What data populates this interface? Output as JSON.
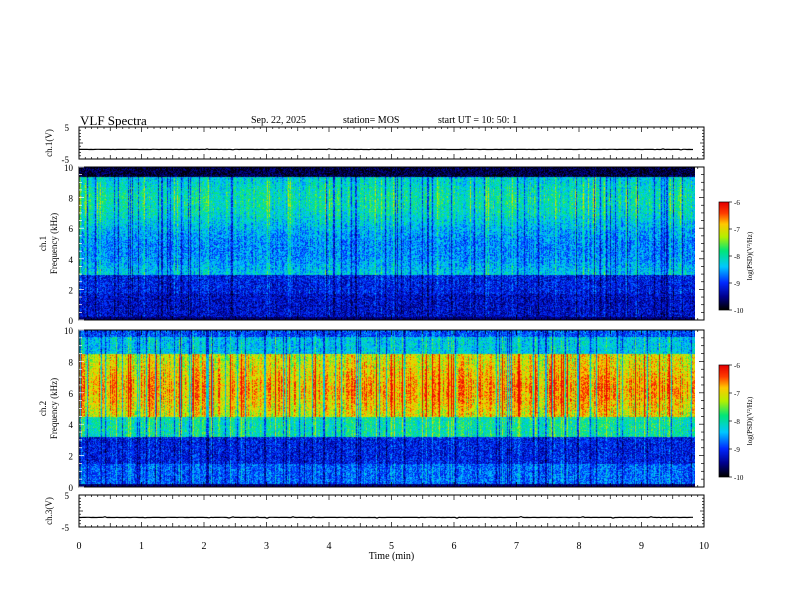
{
  "header": {
    "title": "VLF Spectra",
    "date": "Sep. 22, 2025",
    "station": "station= MOS",
    "start": "start  UT  =   10: 50: 1"
  },
  "chart_data": [
    {
      "type": "line",
      "name": "ch1-waveform",
      "ylabel": "ch.1(V)",
      "ylim": [
        -5,
        5
      ],
      "yticks": [
        "5",
        "-5"
      ],
      "baseline": -2
    },
    {
      "type": "heatmap",
      "name": "ch1-spectrogram",
      "ylabel_line1": "ch.1",
      "ylabel_line2": "Frequency  (kHz)",
      "ylim": [
        0,
        10
      ],
      "yticks": [
        "0",
        "2",
        "4",
        "6",
        "8",
        "10"
      ],
      "colorbar": {
        "label": "log(PSD)(V²/Hz)",
        "ticks": [
          "-6",
          "-7",
          "-8",
          "-9",
          "-10"
        ],
        "range": [
          -10,
          -6
        ]
      }
    },
    {
      "type": "heatmap",
      "name": "ch2-spectrogram",
      "ylabel_line1": "ch.2",
      "ylabel_line2": "Frequency  (kHz)",
      "ylim": [
        0,
        10
      ],
      "yticks": [
        "0",
        "2",
        "4",
        "6",
        "8",
        "10"
      ],
      "colorbar": {
        "label": "log(PSD)(V²/Hz)",
        "ticks": [
          "-6",
          "-7",
          "-8",
          "-9",
          "-10"
        ],
        "range": [
          -10,
          -6
        ]
      }
    },
    {
      "type": "line",
      "name": "ch3-waveform",
      "ylabel": "ch.3(V)",
      "ylim": [
        -5,
        5
      ],
      "yticks": [
        "5",
        "-5"
      ],
      "baseline": -2
    }
  ],
  "xaxis": {
    "label": "Time  (min)",
    "xlim": [
      0,
      10
    ],
    "ticks": [
      "0",
      "1",
      "2",
      "3",
      "4",
      "5",
      "6",
      "7",
      "8",
      "9",
      "10"
    ],
    "data_end": 9.85
  },
  "colors": {
    "spectro_low": "#000000",
    "spectro_mid": "#00c0ff",
    "spectro_high": "#ff2000"
  }
}
